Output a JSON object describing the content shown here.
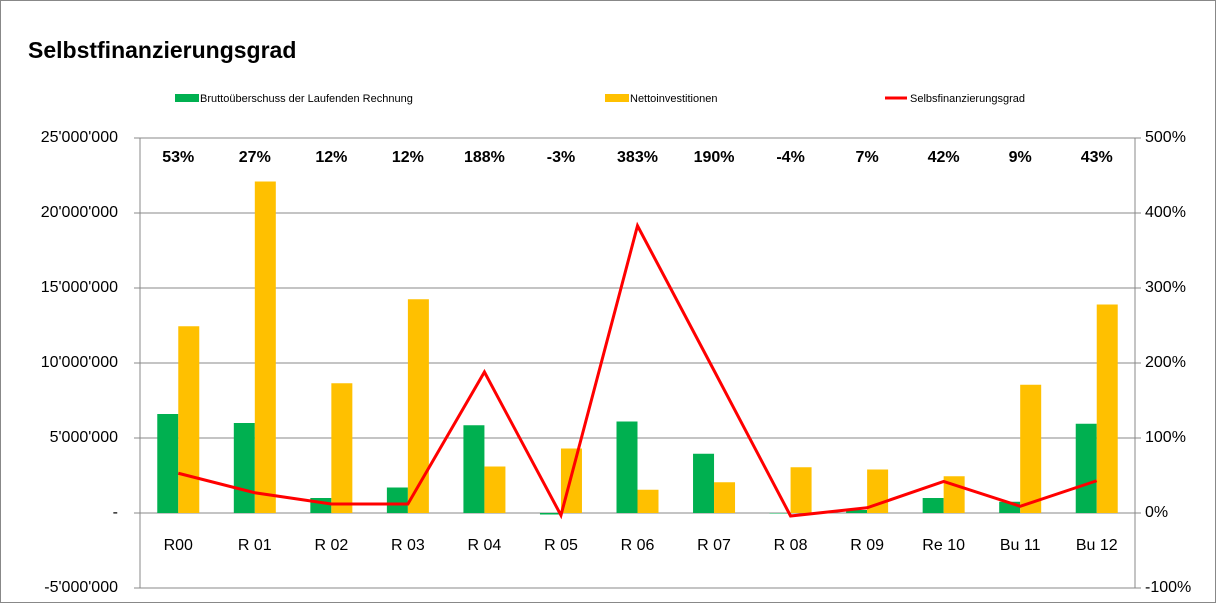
{
  "chart_data": {
    "type": "bar",
    "title": "Selbstfinanzierungsgrad",
    "categories": [
      "R00",
      "R 01",
      "R 02",
      "R 03",
      "R 04",
      "R 05",
      "R 06",
      "R 07",
      "R 08",
      "R 09",
      "Re 10",
      "Bu 11",
      "Bu 12"
    ],
    "series": [
      {
        "name": "Bruttoüberschuss der Laufenden Rechnung",
        "type": "bar",
        "color": "#00b050",
        "values": [
          6600000,
          6000000,
          1000000,
          1700000,
          5850000,
          -100000,
          6100000,
          3950000,
          0,
          200000,
          1000000,
          750000,
          5950000
        ]
      },
      {
        "name": "Nettoinvestitionen",
        "type": "bar",
        "color": "#ffc000",
        "values": [
          12450000,
          22100000,
          8650000,
          14250000,
          3100000,
          4300000,
          1550000,
          2050000,
          3050000,
          2900000,
          2450000,
          8550000,
          13900000
        ]
      },
      {
        "name": "Selbsfinanzierungsgrad",
        "type": "line",
        "color": "#ff0000",
        "axis": "y2",
        "values": [
          53,
          27,
          12,
          12,
          188,
          -3,
          383,
          190,
          -4,
          7,
          42,
          9,
          43
        ],
        "value_labels": [
          "53%",
          "27%",
          "12%",
          "12%",
          "188%",
          "-3%",
          "383%",
          "190%",
          "-4%",
          "7%",
          "42%",
          "9%",
          "43%"
        ]
      }
    ],
    "ylim": [
      -5000000,
      25000000
    ],
    "yticks": [
      {
        "value": -5000000,
        "label": "-5'000'000"
      },
      {
        "value": 0,
        "label": "-"
      },
      {
        "value": 5000000,
        "label": "5'000'000"
      },
      {
        "value": 10000000,
        "label": "10'000'000"
      },
      {
        "value": 15000000,
        "label": "15'000'000"
      },
      {
        "value": 20000000,
        "label": "20'000'000"
      },
      {
        "value": 25000000,
        "label": "25'000'000"
      }
    ],
    "y2lim": [
      -100,
      500
    ],
    "y2ticks": [
      {
        "value": -100,
        "label": "-100%"
      },
      {
        "value": 0,
        "label": "0%"
      },
      {
        "value": 100,
        "label": "100%"
      },
      {
        "value": 200,
        "label": "200%"
      },
      {
        "value": 300,
        "label": "300%"
      },
      {
        "value": 400,
        "label": "400%"
      },
      {
        "value": 500,
        "label": "500%"
      }
    ],
    "grid": true,
    "legend": "top"
  }
}
